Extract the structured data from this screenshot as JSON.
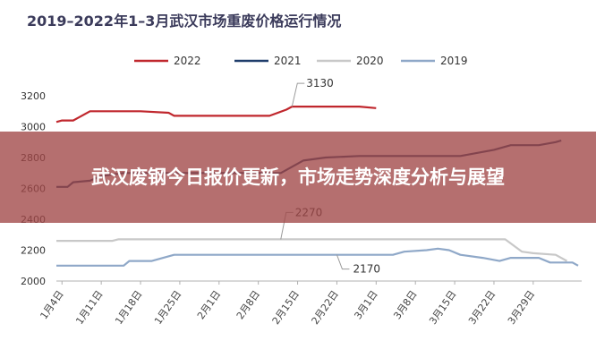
{
  "overlay": {
    "headline": "武汉废钢今日报价更新，市场走势深度分析与展望"
  },
  "chart_data": {
    "type": "line",
    "title": "2019–2022年1–3月武汉市场重废价格运行情况",
    "xlabel": "",
    "ylabel": "",
    "ylim": [
      2000,
      3200
    ],
    "yticks": [
      2000,
      2200,
      2400,
      2600,
      2800,
      3000,
      3200
    ],
    "grid": false,
    "legend_position": "top",
    "x_start": "1月3日",
    "x_end": "3月31日",
    "xticks": [
      {
        "label": "1月4日",
        "day": 1
      },
      {
        "label": "1月11日",
        "day": 8
      },
      {
        "label": "1月18日",
        "day": 15
      },
      {
        "label": "1月25日",
        "day": 22
      },
      {
        "label": "2月1日",
        "day": 29
      },
      {
        "label": "2月8日",
        "day": 36
      },
      {
        "label": "2月15日",
        "day": 43
      },
      {
        "label": "2月22日",
        "day": 50
      },
      {
        "label": "3月1日",
        "day": 57
      },
      {
        "label": "3月8日",
        "day": 64
      },
      {
        "label": "3月15日",
        "day": 71
      },
      {
        "label": "3月22日",
        "day": 78
      },
      {
        "label": "3月29日",
        "day": 85
      }
    ],
    "series": [
      {
        "name": "2022",
        "color": "#c0272d",
        "points": [
          [
            0,
            3030
          ],
          [
            1,
            3040
          ],
          [
            3,
            3040
          ],
          [
            4,
            3060
          ],
          [
            6,
            3100
          ],
          [
            15,
            3100
          ],
          [
            20,
            3090
          ],
          [
            21,
            3070
          ],
          [
            38,
            3070
          ],
          [
            41,
            3110
          ],
          [
            42,
            3130
          ],
          [
            54,
            3130
          ],
          [
            57,
            3120
          ]
        ]
      },
      {
        "name": "2021",
        "color": "#1f3d6b",
        "points": [
          [
            0,
            2610
          ],
          [
            2,
            2610
          ],
          [
            3,
            2640
          ],
          [
            6,
            2650
          ],
          [
            8,
            2680
          ],
          [
            12,
            2700
          ],
          [
            40,
            2700
          ],
          [
            44,
            2780
          ],
          [
            48,
            2800
          ],
          [
            54,
            2810
          ],
          [
            72,
            2810
          ],
          [
            78,
            2850
          ],
          [
            81,
            2880
          ],
          [
            86,
            2880
          ],
          [
            89,
            2900
          ],
          [
            90,
            2910
          ]
        ]
      },
      {
        "name": "2020",
        "color": "#c8c8c8",
        "points": [
          [
            0,
            2260
          ],
          [
            10,
            2260
          ],
          [
            11,
            2270
          ],
          [
            80,
            2270
          ],
          [
            83,
            2190
          ],
          [
            85,
            2180
          ],
          [
            89,
            2170
          ],
          [
            91,
            2130
          ]
        ]
      },
      {
        "name": "2019",
        "color": "#8fa8c8",
        "points": [
          [
            0,
            2100
          ],
          [
            12,
            2100
          ],
          [
            13,
            2130
          ],
          [
            17,
            2130
          ],
          [
            21,
            2170
          ],
          [
            60,
            2170
          ],
          [
            62,
            2190
          ],
          [
            66,
            2200
          ],
          [
            68,
            2210
          ],
          [
            70,
            2200
          ],
          [
            72,
            2170
          ],
          [
            76,
            2150
          ],
          [
            79,
            2130
          ],
          [
            81,
            2150
          ],
          [
            86,
            2150
          ],
          [
            88,
            2120
          ],
          [
            92,
            2120
          ],
          [
            93,
            2100
          ]
        ]
      }
    ],
    "annotations": [
      {
        "text": "3130",
        "series": "2022",
        "x": 42,
        "y": 3130
      },
      {
        "text": "2270",
        "series": "2020",
        "x": 40,
        "y": 2270
      },
      {
        "text": "2170",
        "series": "2019",
        "x": 50,
        "y": 2170
      }
    ]
  }
}
